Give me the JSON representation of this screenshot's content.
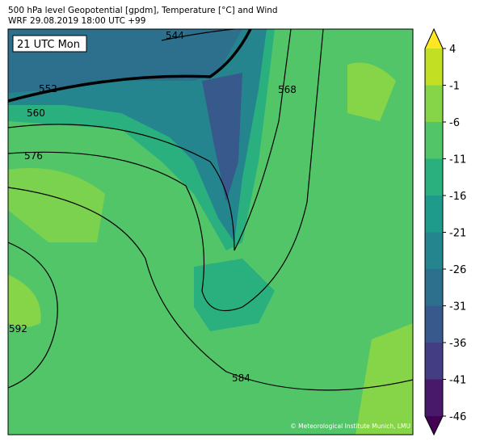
{
  "header": {
    "title": "500 hPa level Geopotential [gpdm], Temperature [°C] and Wind",
    "subtitle": "WRF 29.08.2019 18:00 UTC +99"
  },
  "map": {
    "time_label": "21 UTC Mon",
    "contour_labels": [
      544,
      552,
      560,
      568,
      576,
      584,
      592
    ],
    "credit": "© Meteorological Institute Munich, LMU"
  },
  "colorbar": {
    "ticks": [
      4,
      -1,
      -6,
      -11,
      -16,
      -21,
      -26,
      -31,
      -36,
      -41,
      -46
    ],
    "lim": [
      -46,
      4
    ],
    "colors": [
      "#440154",
      "#48186a",
      "#433d84",
      "#38598c",
      "#2d708e",
      "#25858e",
      "#1e9b8a",
      "#2ab07f",
      "#52c569",
      "#86d549",
      "#c2df23",
      "#fde725"
    ]
  }
}
